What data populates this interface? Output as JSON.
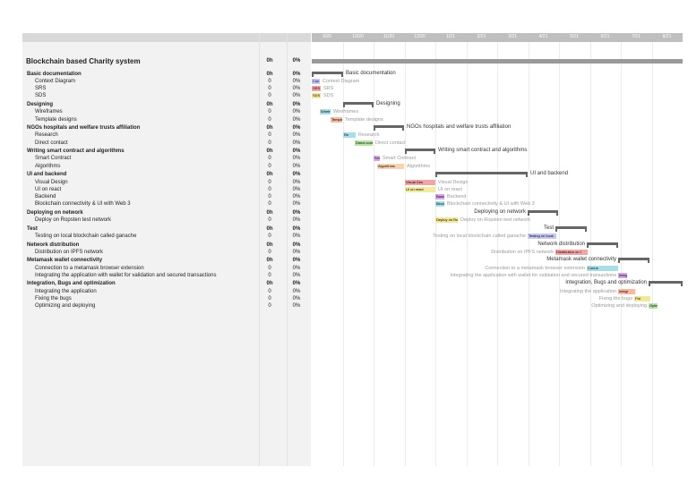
{
  "project": {
    "title": "Blockchain based Charity system",
    "duration": "0h",
    "progress": "0%"
  },
  "timeline": [
    "9/20",
    "10/20",
    "11/20",
    "12/20",
    "1/21",
    "2/21",
    "3/21",
    "4/21",
    "5/21",
    "6/21",
    "7/21",
    "8/21"
  ],
  "groups": [
    {
      "name": "Basic documentation",
      "duration": "0h",
      "progress": "0%",
      "tasks": [
        {
          "name": "Context Diagram",
          "duration": "0",
          "progress": "0%",
          "bar_text": "Con",
          "color": "#c5c8f2"
        },
        {
          "name": "SRS",
          "duration": "0",
          "progress": "0%",
          "bar_text": "SRS",
          "color": "#f5a6a6"
        },
        {
          "name": "SDS",
          "duration": "0",
          "progress": "0%",
          "bar_text": "SDS",
          "color": "#f3e79a"
        }
      ]
    },
    {
      "name": "Designing",
      "duration": "0h",
      "progress": "0%",
      "tasks": [
        {
          "name": "Wireframes",
          "duration": "0",
          "progress": "0%",
          "bar_text": "Wirefr",
          "color": "#a9dde8"
        },
        {
          "name": "Template designs",
          "duration": "0",
          "progress": "0%",
          "bar_text": "Templat",
          "color": "#f7b9a2"
        }
      ]
    },
    {
      "name": "NGOs hospitals and welfare trusts affiliation",
      "duration": "0h",
      "progress": "0%",
      "tasks": [
        {
          "name": "Research",
          "duration": "0",
          "progress": "0%",
          "bar_text": "Re",
          "color": "#a9dde8"
        },
        {
          "name": "Direct contact",
          "duration": "0",
          "progress": "0%",
          "bar_text": "Direct contac",
          "color": "#b8e2a7"
        }
      ]
    },
    {
      "name": "Writing smart contract and algorithms",
      "duration": "0h",
      "progress": "0%",
      "tasks": [
        {
          "name": "Smart Contract",
          "duration": "0",
          "progress": "0%",
          "bar_text": "Smart Contract",
          "color": "#d7a6ec"
        },
        {
          "name": "Algorithms",
          "duration": "0",
          "progress": "0%",
          "bar_text": "Algorithms",
          "color": "#f7d3b1"
        }
      ]
    },
    {
      "name": "UI and backend",
      "duration": "0h",
      "progress": "0%",
      "tasks": [
        {
          "name": "Visual Design",
          "duration": "0",
          "progress": "0%",
          "bar_text": "Visual Des",
          "color": "#f2a5a5"
        },
        {
          "name": "UI on react",
          "duration": "0",
          "progress": "0%",
          "bar_text": "UI on react",
          "color": "#f1eca0"
        },
        {
          "name": "Backend",
          "duration": "0",
          "progress": "0%",
          "bar_text": "Backen",
          "color": "#d7a6ec"
        },
        {
          "name": "Blockchain connectivity & UI with Web 3",
          "duration": "0",
          "progress": "0%",
          "bar_text": "Blockch",
          "color": "#a9dde8"
        }
      ]
    },
    {
      "name": "Deploying on network",
      "duration": "0h",
      "progress": "0%",
      "tasks": [
        {
          "name": "Deploy on Ropsten test network",
          "duration": "0",
          "progress": "0%",
          "bar_text": "Deploy on Rop",
          "color": "#f3e79a"
        }
      ]
    },
    {
      "name": "Test",
      "duration": "0h",
      "progress": "0%",
      "tasks": [
        {
          "name": "Testing on local blockchain called ganache",
          "duration": "0",
          "progress": "0%",
          "bar_text": "Testing on local",
          "color": "#c5c8f2"
        }
      ]
    },
    {
      "name": "Network distribution",
      "duration": "0h",
      "progress": "0%",
      "tasks": [
        {
          "name": "Distribution on IPFS network",
          "duration": "0",
          "progress": "0%",
          "bar_text": "Distribution on I",
          "color": "#f2a5a5"
        }
      ]
    },
    {
      "name": "Metamask wallet connectivity",
      "duration": "0h",
      "progress": "0%",
      "tasks": [
        {
          "name": "Connection to a metamask browser extension",
          "duration": "0",
          "progress": "0%",
          "bar_text": "Conne",
          "color": "#a9dde8"
        },
        {
          "name": "Integrating the application with wallet for validation and secured transactions",
          "duration": "0",
          "progress": "0%",
          "bar_text": "Integrat",
          "color": "#d7a6ec"
        }
      ]
    },
    {
      "name": "Integration, Bugs and optimization",
      "duration": "0h",
      "progress": "0%",
      "tasks": [
        {
          "name": "Integrating the application",
          "duration": "0",
          "progress": "0%",
          "bar_text": "Integr",
          "color": "#f7b9a2"
        },
        {
          "name": "Fixing the bugs",
          "duration": "0",
          "progress": "0%",
          "bar_text": "Fixi",
          "color": "#f3e79a"
        },
        {
          "name": "Optimizing and deploying",
          "duration": "0",
          "progress": "0%",
          "bar_text": "Optin",
          "color": "#b8e2a7"
        }
      ]
    }
  ]
}
